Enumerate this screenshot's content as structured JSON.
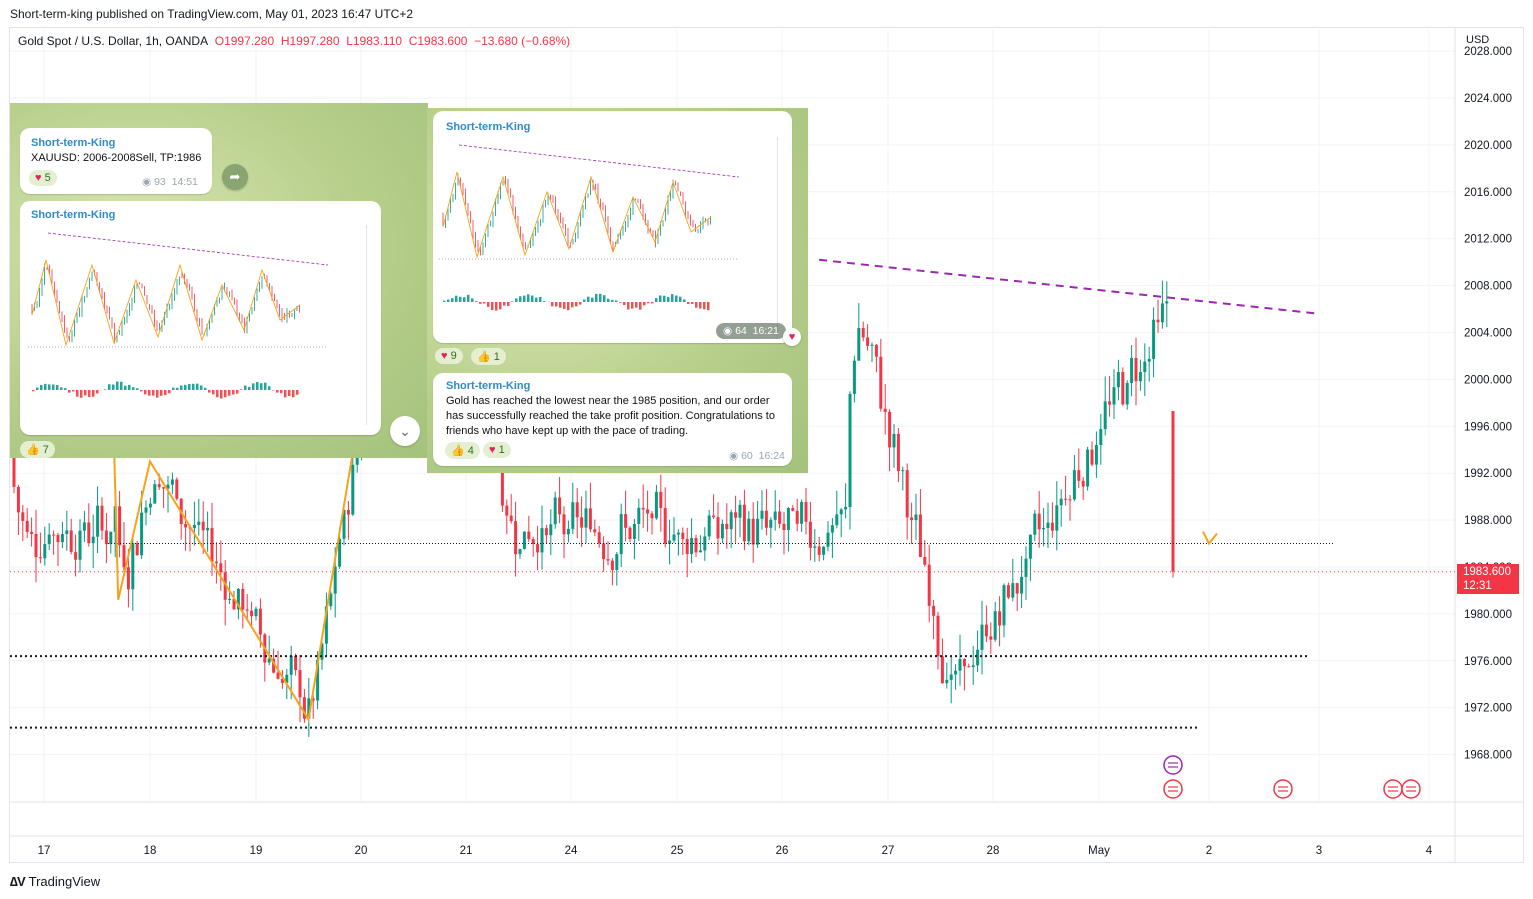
{
  "publisher_line": "Short-term-king published on TradingView.com, May 01, 2023 16:47 UTC+2",
  "legend": {
    "symbol": "Gold Spot / U.S. Dollar, 1h, OANDA",
    "open": "O1997.280",
    "high": "H1997.280",
    "low": "L1983.110",
    "close": "C1983.600",
    "change": "−13.680 (−0.68%)"
  },
  "currency": "USD",
  "price_tag": {
    "price": "1983.600",
    "countdown": "12:31"
  },
  "brand": "TradingView",
  "colors": {
    "up": "#089981",
    "down": "#f23645",
    "pattern": "#f7a21b",
    "trendline": "#9c27b0"
  },
  "telegram": {
    "msg1": {
      "name": "Short-term-King",
      "text": "XAUUSD:  2006-2008Sell,    TP:1986",
      "reaction": "5",
      "views": "93",
      "time": "14:51"
    },
    "msg2": {
      "name": "Short-term-King",
      "reaction": "7"
    },
    "msg3": {
      "name": "Short-term-King",
      "views": "64",
      "time": "16:21",
      "reaction_heart": "9",
      "reaction_thumb": "1"
    },
    "msg4": {
      "name": "Short-term-King",
      "text": "Gold has reached the lowest near the 1985 position, and our order has successfully reached the take profit position. Congratulations to friends who have kept up with the pace of trading.",
      "reaction_thumb": "4",
      "reaction_heart": "1",
      "views": "60",
      "time": "16:24"
    }
  },
  "chart_data": {
    "type": "candlestick",
    "title": "Gold Spot / U.S. Dollar, 1h, OANDA",
    "x_ticks": [
      "17",
      "18",
      "19",
      "20",
      "21",
      "24",
      "25",
      "26",
      "27",
      "28",
      "May",
      "2",
      "3",
      "4"
    ],
    "y_ticks": [
      "2028.000",
      "2024.000",
      "2020.000",
      "2016.000",
      "2012.000",
      "2008.000",
      "2004.000",
      "2000.000",
      "1996.000",
      "1992.000",
      "1988.000",
      "1984.000",
      "1980.000",
      "1976.000",
      "1972.000",
      "1968.000"
    ],
    "ylim": [
      1965.6,
      2029.0
    ],
    "last_price": 1983.6,
    "horizontal_levels": [
      1986.0,
      1976.4,
      1970.3
    ],
    "zigzag_pattern": [
      [
        "17.65",
        1998
      ],
      [
        "17.7",
        1981.2
      ],
      [
        "18.0",
        1993
      ],
      [
        "19.5",
        1971
      ],
      [
        "20.0",
        1998
      ],
      [
        "21.3",
        2003
      ],
      [
        "23.7",
        1971.3
      ],
      [
        "26.6",
        2009.3
      ],
      [
        "27.6",
        1972.9
      ],
      [
        "28.75",
        1992.5
      ],
      [
        "May.65",
        2006.5
      ],
      [
        "2.0",
        1986
      ],
      [
        "2.1",
        1987.2
      ]
    ],
    "trendline": [
      [
        "26.35",
        2010.2
      ],
      [
        "3.0",
        2005.6
      ]
    ],
    "grid": true
  }
}
